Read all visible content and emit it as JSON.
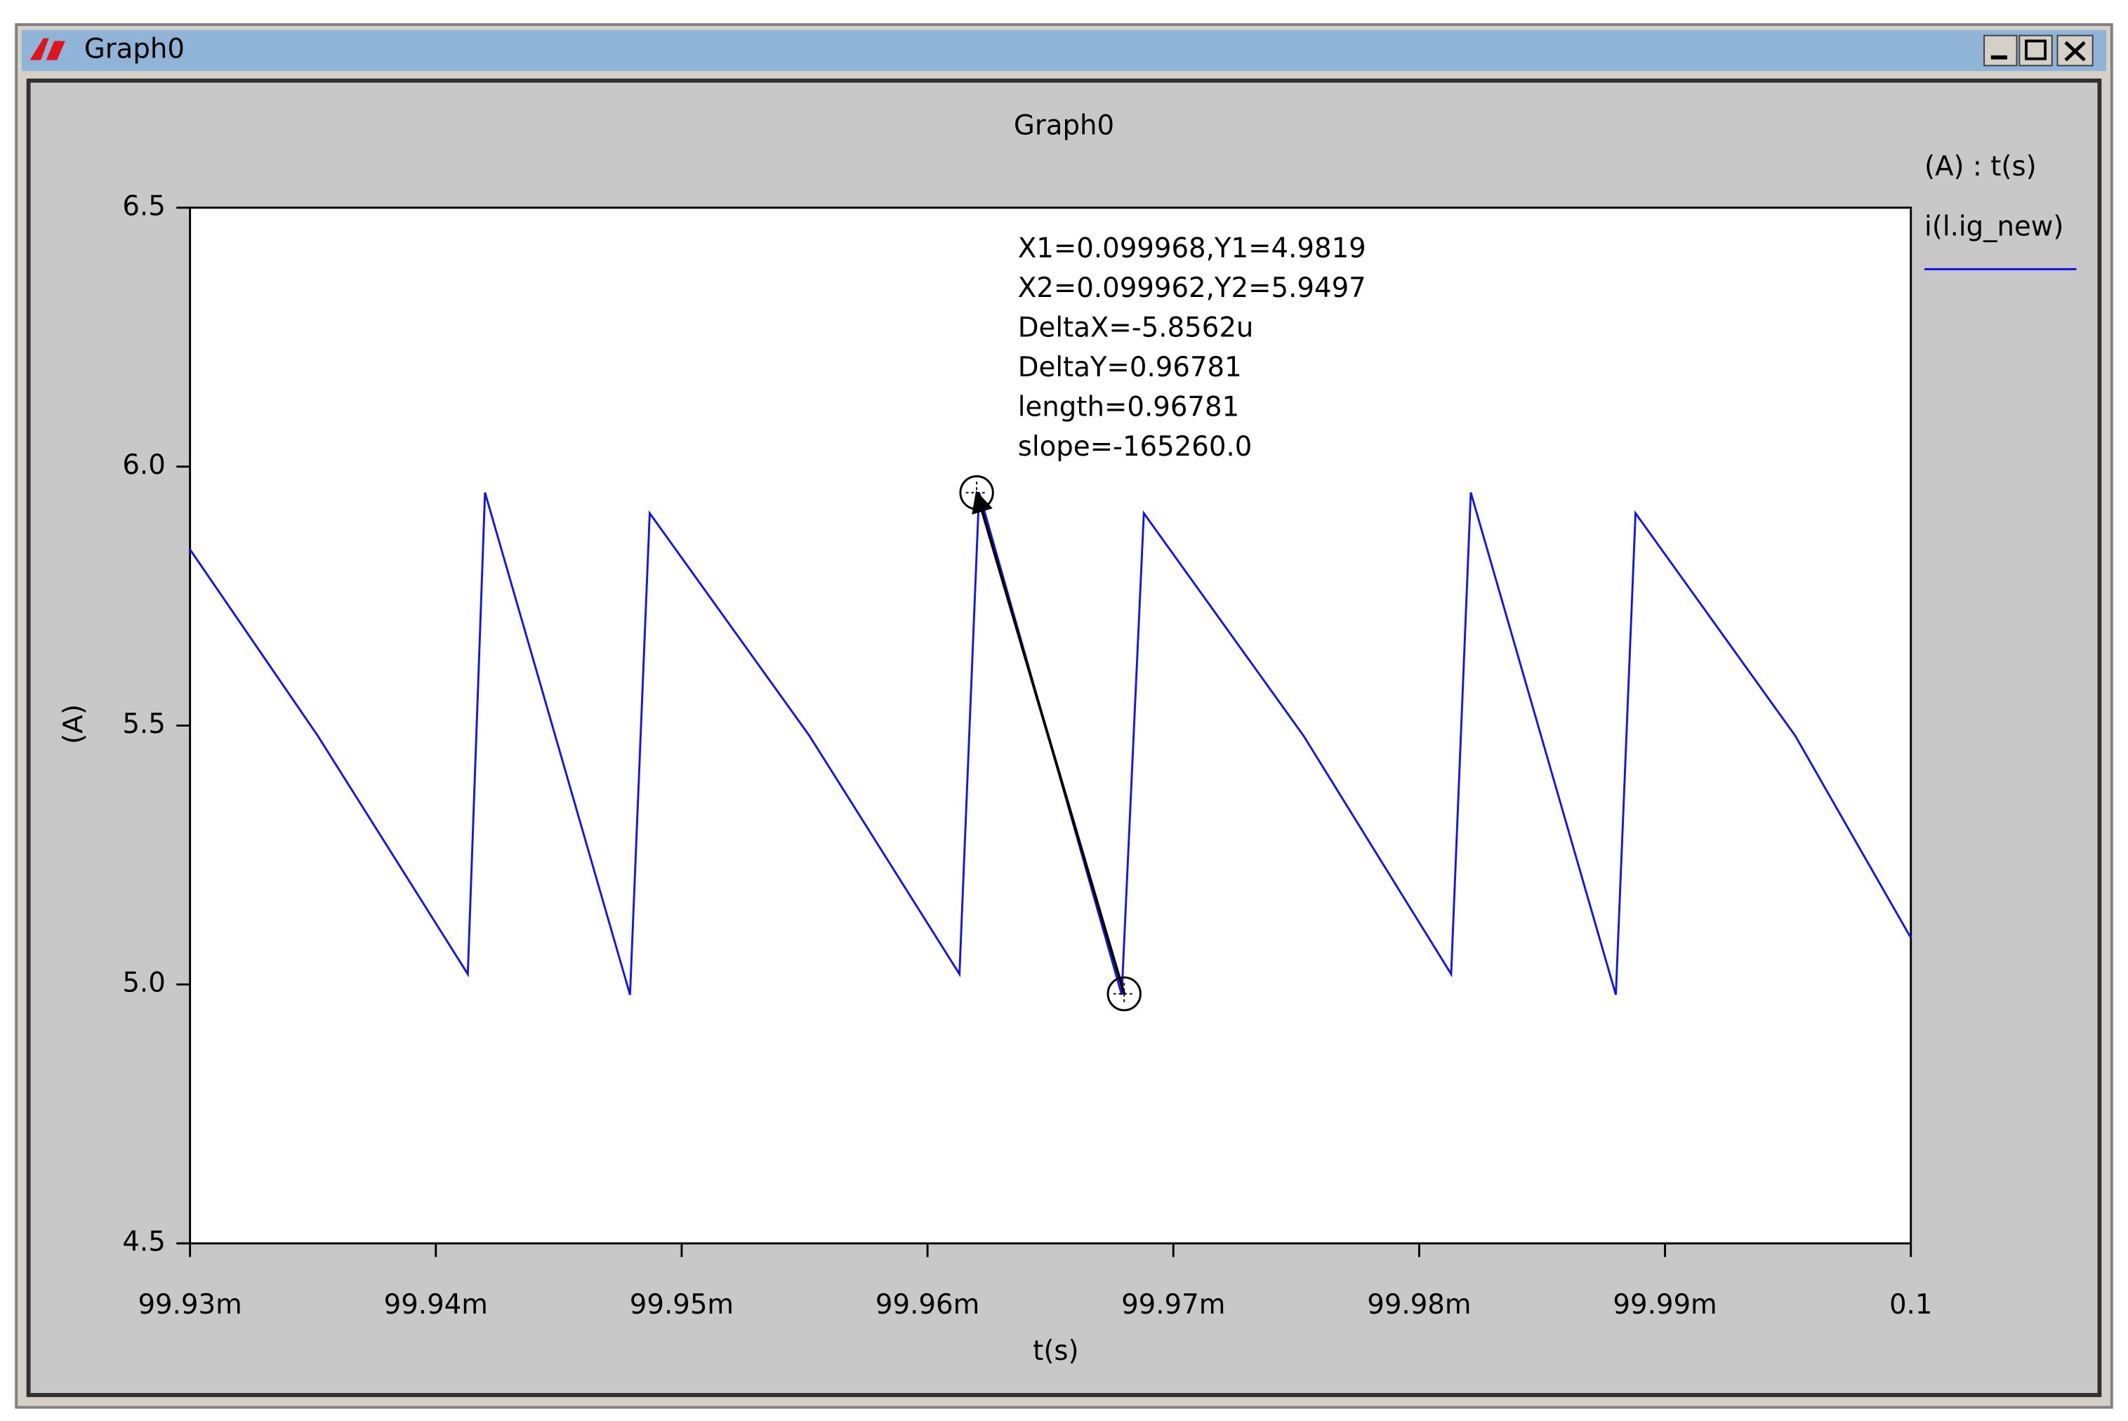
{
  "window": {
    "title": "Graph0"
  },
  "chart_data": {
    "type": "line",
    "title": "Graph0",
    "x_label": "t(s)",
    "y_label": "(A)",
    "legend_title": "(A) : t(s)",
    "legend_position": "right",
    "xlim": [
      0.09993,
      0.1
    ],
    "xticks": [
      {
        "value": 0.09993,
        "label": "99.93m"
      },
      {
        "value": 0.09994,
        "label": "99.94m"
      },
      {
        "value": 0.09995,
        "label": "99.95m"
      },
      {
        "value": 0.09996,
        "label": "99.96m"
      },
      {
        "value": 0.09997,
        "label": "99.97m"
      },
      {
        "value": 0.09998,
        "label": "99.98m"
      },
      {
        "value": 0.09999,
        "label": "99.99m"
      },
      0.1
    ],
    "ylim": [
      4.5,
      6.5
    ],
    "yticks": [
      4.5,
      {
        "value": 5,
        "label": "5.0"
      },
      5.5,
      {
        "value": 6,
        "label": "6.0"
      },
      6.5
    ],
    "series": [
      {
        "name": "i(l.ig_new)",
        "color": "#1414e6",
        "x": [
          0.09993,
          0.0999352,
          0.0999413,
          0.099942,
          0.0999479,
          0.0999487,
          0.0999552,
          0.0999613,
          0.0999621,
          0.0999679,
          0.0999688,
          0.0999753,
          0.0999813,
          0.0999821,
          0.099988,
          0.0999888,
          0.0999953,
          0.1
        ],
        "values": [
          5.84,
          5.48,
          5.02,
          5.95,
          4.98,
          5.91,
          5.48,
          5.02,
          5.95,
          4.98,
          5.91,
          5.48,
          5.02,
          5.95,
          4.98,
          5.91,
          5.48,
          5.09
        ]
      }
    ],
    "cursors": [
      {
        "x": 0.099968,
        "y": 4.9819
      },
      {
        "x": 0.099962,
        "y": 5.9497
      }
    ],
    "annotations": [
      "X1=0.099968,Y1=4.9819",
      "X2=0.099962,Y2=5.9497",
      "DeltaX=-5.8562u",
      "DeltaY=0.96781",
      "length=0.96781",
      "slope=-165260.0"
    ]
  }
}
